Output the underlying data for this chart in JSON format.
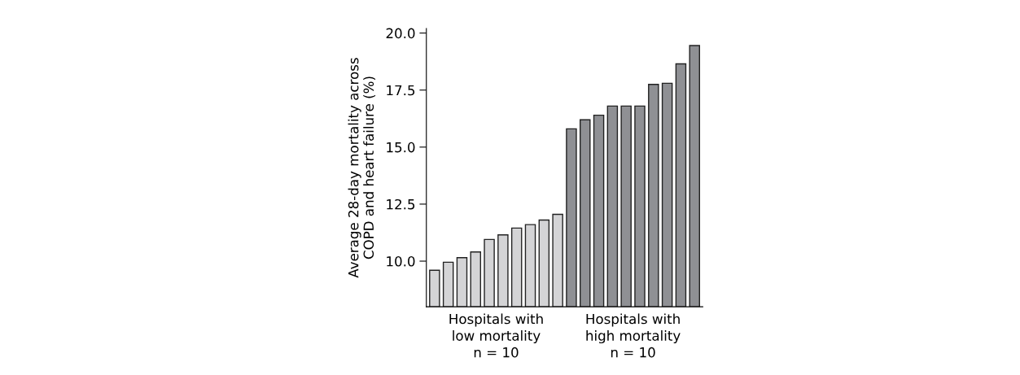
{
  "chart_data": {
    "type": "bar",
    "ylabel": "Average 28-day mortality across\nCOPD and heart failure (%)",
    "categories": [
      null,
      null,
      null,
      null,
      null,
      null,
      null,
      null,
      null,
      null,
      null,
      null,
      null,
      null,
      null,
      null,
      null,
      null,
      null,
      null
    ],
    "values": [
      9.6,
      9.95,
      10.15,
      10.4,
      10.95,
      11.15,
      11.45,
      11.6,
      11.8,
      12.05,
      15.8,
      16.2,
      16.4,
      16.8,
      16.8,
      16.8,
      17.75,
      17.8,
      18.65,
      19.45
    ],
    "colors": [
      "#d4d4d6",
      "#d4d4d6",
      "#d4d4d6",
      "#d4d4d6",
      "#d4d4d6",
      "#d4d4d6",
      "#d4d4d6",
      "#d4d4d6",
      "#d4d4d6",
      "#d4d4d6",
      "#8f9094",
      "#8f9094",
      "#8f9094",
      "#8f9094",
      "#8f9094",
      "#8f9094",
      "#8f9094",
      "#8f9094",
      "#8f9094",
      "#8f9094"
    ],
    "ylim": [
      8.0,
      20.2
    ],
    "yticks": [
      {
        "value": 10,
        "label": "10.0"
      },
      {
        "value": 12.5,
        "label": "12.5"
      },
      {
        "value": 15,
        "label": "15.0"
      },
      {
        "value": 17.5,
        "label": "17.5"
      },
      {
        "value": 20,
        "label": "20.0"
      }
    ],
    "annotations": [
      "Hospitals with\nlow mortality\nn = 10",
      "Hospitals with\nhigh mortality\nn = 10"
    ],
    "grid": false,
    "legend": false
  }
}
